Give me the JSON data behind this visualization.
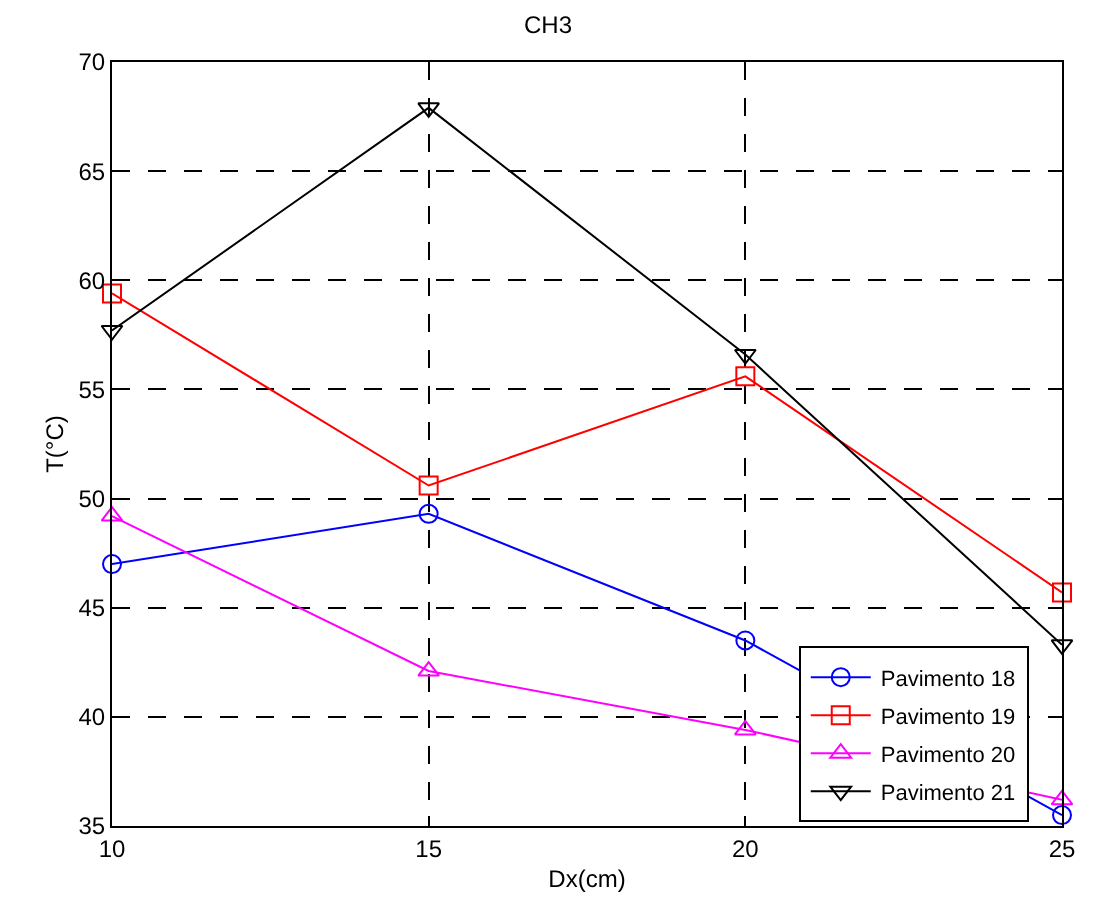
{
  "chart_data": {
    "type": "line",
    "title": "CH3",
    "xlabel": "Dx(cm)",
    "ylabel": "T(°C)",
    "x": [
      10,
      15,
      20,
      25
    ],
    "series": [
      {
        "name": "Pavimento 18",
        "color": "#0000ff",
        "marker": "circle",
        "values": [
          47.0,
          49.3,
          43.5,
          35.5
        ]
      },
      {
        "name": "Pavimento 19",
        "color": "#ff0000",
        "marker": "square",
        "values": [
          59.4,
          50.6,
          55.6,
          45.7
        ]
      },
      {
        "name": "Pavimento 20",
        "color": "#ff00ff",
        "marker": "triangle",
        "values": [
          49.2,
          42.1,
          39.4,
          36.2
        ]
      },
      {
        "name": "Pavimento 21",
        "color": "#000000",
        "marker": "triangle-down",
        "values": [
          57.7,
          67.9,
          56.6,
          43.3
        ]
      }
    ],
    "xlim": [
      10,
      25
    ],
    "xticks": [
      10,
      15,
      20,
      25
    ],
    "ylim": [
      35,
      70
    ],
    "yticks": [
      35,
      40,
      45,
      50,
      55,
      60,
      65,
      70
    ],
    "grid": true,
    "legend": "bottom right",
    "line_style": "solid"
  }
}
